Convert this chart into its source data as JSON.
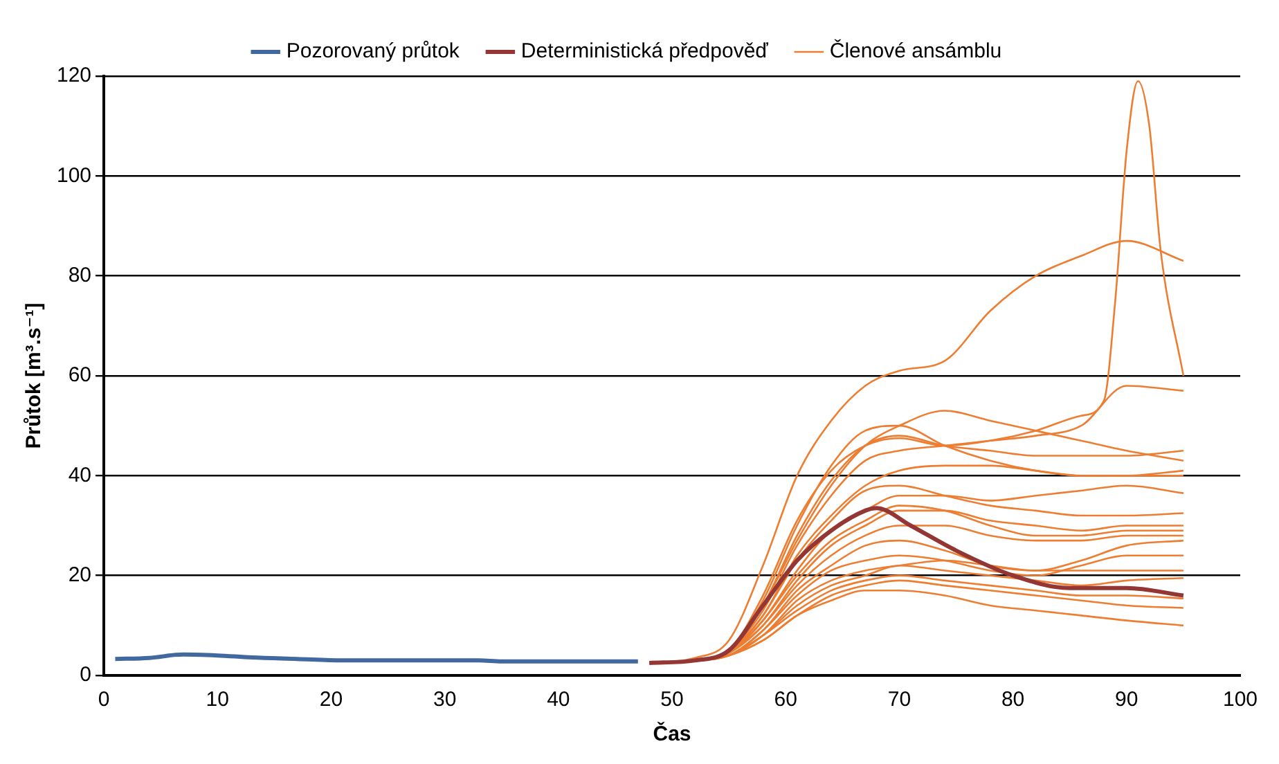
{
  "chart_data": {
    "type": "line",
    "xlabel": "Čas",
    "ylabel": "Průtok [m³.s⁻¹]",
    "xlim": [
      0,
      100
    ],
    "xticks": [
      0,
      10,
      20,
      30,
      40,
      50,
      60,
      70,
      80,
      90,
      100
    ],
    "ylim": [
      0,
      120
    ],
    "yticks": [
      0,
      20,
      40,
      60,
      80,
      100,
      120
    ],
    "grid": "y",
    "legend": "top",
    "marker": "none",
    "line_style": "solid",
    "x": [
      48,
      52,
      55,
      58,
      61,
      64,
      67,
      70,
      74,
      78,
      82,
      86,
      90,
      95
    ],
    "series": [
      {
        "name": "Pozorovaný průtok",
        "color": "#41689f",
        "x": [
          1,
          4,
          7,
          10,
          13,
          17,
          21,
          27,
          33,
          35,
          40,
          47
        ],
        "values": [
          3.3,
          3.5,
          4.2,
          4,
          3.6,
          3.3,
          3,
          3,
          3,
          2.8,
          2.8,
          2.8
        ]
      },
      {
        "name": "Deterministická předpověď",
        "color": "#943634",
        "x": [
          48,
          52,
          55,
          58,
          61,
          64,
          67,
          68,
          71,
          75,
          80,
          85,
          90,
          95
        ],
        "values": [
          2.5,
          3,
          5,
          14,
          23,
          29,
          33,
          33.5,
          30,
          25,
          20,
          17.5,
          17.5,
          16
        ]
      },
      {
        "name": "Členové ansámblu",
        "color": "#ed7d31",
        "values": [
          2.5,
          3.5,
          7,
          22,
          40,
          51,
          58,
          61,
          63,
          73,
          80,
          84,
          87,
          83
        ]
      },
      {
        "color": "#ed7d31",
        "x": [
          48,
          52,
          55,
          58,
          61,
          64,
          67,
          70,
          74,
          78,
          82,
          86,
          88,
          89,
          90,
          91,
          92,
          93,
          95
        ],
        "values": [
          2.5,
          3,
          5,
          16,
          31,
          41,
          46,
          47.5,
          46,
          47,
          49,
          52,
          55,
          75,
          105,
          119,
          110,
          85,
          60
        ]
      },
      {
        "color": "#ed7d31",
        "values": [
          2.5,
          3,
          5,
          14,
          27,
          38,
          46,
          50,
          53,
          51,
          49,
          47,
          45,
          43
        ]
      },
      {
        "color": "#ed7d31",
        "values": [
          2.5,
          3,
          5,
          15,
          30,
          42,
          49,
          50,
          46,
          43,
          41,
          40,
          40,
          41
        ]
      },
      {
        "color": "#ed7d31",
        "values": [
          2.5,
          3,
          5,
          14,
          28,
          39,
          46,
          48,
          46,
          45,
          44,
          44,
          44,
          45
        ]
      },
      {
        "color": "#ed7d31",
        "values": [
          2.5,
          3,
          5,
          13,
          26,
          36,
          43,
          45,
          46,
          47,
          48,
          50,
          58,
          57
        ]
      },
      {
        "color": "#ed7d31",
        "values": [
          2.5,
          3,
          5,
          12,
          24,
          32,
          38,
          41,
          42,
          42,
          41,
          40,
          40,
          40
        ]
      },
      {
        "color": "#ed7d31",
        "values": [
          2.5,
          3,
          4.5,
          12,
          23,
          31,
          37,
          38,
          36,
          34,
          33,
          32,
          32,
          32.5
        ]
      },
      {
        "color": "#ed7d31",
        "values": [
          2.5,
          3,
          4.5,
          11,
          21,
          29,
          33,
          36,
          36,
          35,
          36,
          37,
          38,
          36.5
        ]
      },
      {
        "color": "#ed7d31",
        "values": [
          2.5,
          3,
          4.5,
          11,
          20,
          27,
          31,
          34,
          33,
          30,
          28,
          28,
          29,
          29
        ]
      },
      {
        "color": "#ed7d31",
        "values": [
          2.5,
          3,
          4.5,
          10,
          19,
          26,
          30,
          33,
          33,
          31,
          30,
          29,
          30,
          30
        ]
      },
      {
        "color": "#ed7d31",
        "values": [
          2.5,
          3,
          4.5,
          10,
          18,
          24,
          28,
          30,
          30,
          28,
          27,
          27,
          28,
          28
        ]
      },
      {
        "color": "#ed7d31",
        "values": [
          2.5,
          3,
          4,
          9,
          17,
          22,
          26,
          27,
          25,
          22,
          21,
          23,
          26,
          27
        ]
      },
      {
        "color": "#ed7d31",
        "values": [
          2.5,
          3,
          4,
          9,
          16,
          21,
          23,
          24,
          23,
          21,
          20,
          22,
          24,
          24
        ]
      },
      {
        "color": "#ed7d31",
        "values": [
          2.5,
          3,
          4,
          8,
          15,
          19,
          21,
          22,
          23,
          22,
          21,
          21,
          21,
          21
        ]
      },
      {
        "color": "#ed7d31",
        "values": [
          2.5,
          3,
          4,
          8,
          14,
          18,
          20,
          22,
          21,
          20,
          19,
          18,
          19,
          19.5
        ]
      },
      {
        "color": "#ed7d31",
        "values": [
          2.5,
          3,
          4,
          8,
          13,
          17,
          19,
          20,
          19,
          18,
          17,
          16,
          16,
          15.4
        ]
      },
      {
        "color": "#ed7d31",
        "values": [
          2.5,
          3,
          4,
          7,
          12,
          16,
          18,
          19,
          18,
          17,
          16,
          15,
          14,
          13.5
        ]
      },
      {
        "color": "#ed7d31",
        "values": [
          2.5,
          3,
          4,
          7,
          12,
          15,
          17,
          17,
          16,
          14,
          13,
          12,
          11,
          10
        ]
      }
    ]
  }
}
